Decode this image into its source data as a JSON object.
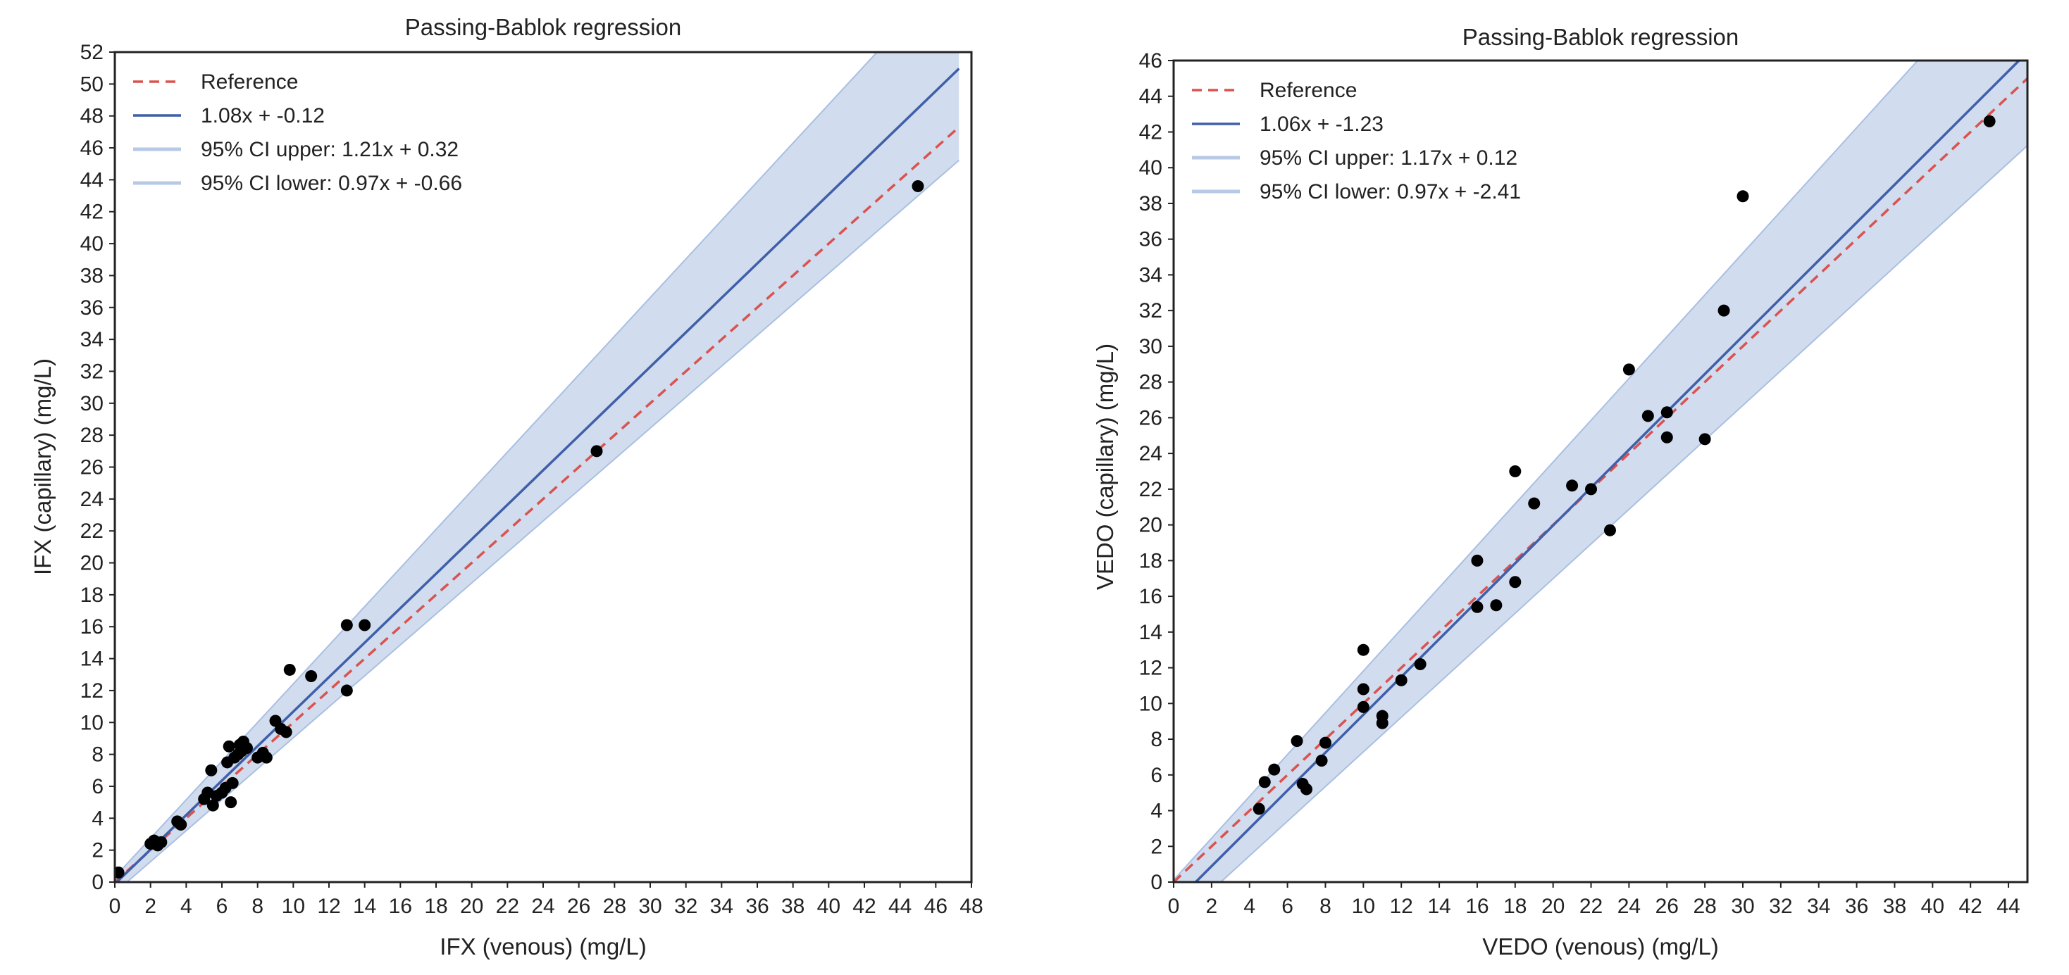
{
  "chart_data": [
    {
      "type": "scatter",
      "title": "Passing-Bablok regression",
      "xlabel": "IFX (venous) (mg/L)",
      "ylabel": "IFX (capillary) (mg/L)",
      "xlim": [
        0,
        48
      ],
      "ylim": [
        0,
        52
      ],
      "x_ticks": [
        0,
        2,
        4,
        6,
        8,
        10,
        12,
        14,
        16,
        18,
        20,
        22,
        24,
        26,
        28,
        30,
        32,
        34,
        36,
        38,
        40,
        42,
        44,
        46,
        48
      ],
      "y_ticks": [
        0,
        2,
        4,
        6,
        8,
        10,
        12,
        14,
        16,
        18,
        20,
        22,
        24,
        26,
        28,
        30,
        32,
        34,
        36,
        38,
        40,
        42,
        44,
        46,
        48,
        50,
        52
      ],
      "line_extent": [
        0,
        47.3
      ],
      "grid": false,
      "legend_position": "top-left",
      "legend": [
        {
          "label": "Reference",
          "style": "dashed",
          "color": "#d9534f"
        },
        {
          "label": "1.08x + -0.12",
          "style": "solid",
          "color": "#3f5fa8"
        },
        {
          "label": "95% CI upper: 1.21x + 0.32",
          "style": "band",
          "color": "#b8c9e6"
        },
        {
          "label": "95% CI lower: 0.97x + -0.66",
          "style": "band",
          "color": "#b8c9e6"
        }
      ],
      "reference": {
        "slope": 1,
        "intercept": 0
      },
      "fit": {
        "slope": 1.08,
        "intercept": -0.12
      },
      "ci_upper": {
        "slope": 1.21,
        "intercept": 0.32
      },
      "ci_lower": {
        "slope": 0.97,
        "intercept": -0.66
      },
      "points": [
        [
          0.2,
          0.6
        ],
        [
          2.0,
          2.4
        ],
        [
          2.2,
          2.6
        ],
        [
          2.4,
          2.3
        ],
        [
          2.6,
          2.5
        ],
        [
          3.5,
          3.8
        ],
        [
          3.7,
          3.6
        ],
        [
          5.0,
          5.2
        ],
        [
          5.2,
          5.6
        ],
        [
          5.4,
          7.0
        ],
        [
          5.5,
          4.8
        ],
        [
          5.7,
          5.4
        ],
        [
          6.0,
          5.6
        ],
        [
          6.2,
          5.9
        ],
        [
          6.3,
          7.5
        ],
        [
          6.4,
          8.5
        ],
        [
          6.5,
          5.0
        ],
        [
          6.6,
          6.2
        ],
        [
          6.7,
          7.8
        ],
        [
          6.9,
          8.0
        ],
        [
          7.0,
          8.6
        ],
        [
          7.1,
          8.2
        ],
        [
          7.2,
          8.8
        ],
        [
          7.4,
          8.4
        ],
        [
          8.0,
          7.8
        ],
        [
          8.3,
          8.1
        ],
        [
          8.5,
          7.8
        ],
        [
          9.0,
          10.1
        ],
        [
          9.3,
          9.6
        ],
        [
          9.6,
          9.4
        ],
        [
          9.8,
          13.3
        ],
        [
          11.0,
          12.9
        ],
        [
          13.0,
          16.1
        ],
        [
          13.0,
          12.0
        ],
        [
          14.0,
          16.1
        ],
        [
          27.0,
          27.0
        ],
        [
          45.0,
          43.6
        ]
      ],
      "colors": {
        "reference": "#d9534f",
        "fit": "#3f5fa8",
        "band": "#c9d6ec",
        "points": "#000000"
      }
    },
    {
      "type": "scatter",
      "title": "Passing-Bablok regression",
      "xlabel": "VEDO (venous) (mg/L)",
      "ylabel": "VEDO (capillary) (mg/L)",
      "xlim": [
        0,
        45
      ],
      "ylim": [
        0,
        46
      ],
      "x_ticks": [
        0,
        2,
        4,
        6,
        8,
        10,
        12,
        14,
        16,
        18,
        20,
        22,
        24,
        26,
        28,
        30,
        32,
        34,
        36,
        38,
        40,
        42,
        44
      ],
      "y_ticks": [
        0,
        2,
        4,
        6,
        8,
        10,
        12,
        14,
        16,
        18,
        20,
        22,
        24,
        26,
        28,
        30,
        32,
        34,
        36,
        38,
        40,
        42,
        44,
        46
      ],
      "line_extent": [
        0,
        45
      ],
      "grid": false,
      "legend_position": "top-left",
      "legend": [
        {
          "label": "Reference",
          "style": "dashed",
          "color": "#d9534f"
        },
        {
          "label": "1.06x + -1.23",
          "style": "solid",
          "color": "#3f5fa8"
        },
        {
          "label": "95% CI upper: 1.17x + 0.12",
          "style": "band",
          "color": "#b8c9e6"
        },
        {
          "label": "95% CI lower: 0.97x + -2.41",
          "style": "band",
          "color": "#b8c9e6"
        }
      ],
      "reference": {
        "slope": 1,
        "intercept": 0
      },
      "fit": {
        "slope": 1.06,
        "intercept": -1.23
      },
      "ci_upper": {
        "slope": 1.17,
        "intercept": 0.12
      },
      "ci_lower": {
        "slope": 0.97,
        "intercept": -2.41
      },
      "points": [
        [
          4.5,
          4.1
        ],
        [
          4.8,
          5.6
        ],
        [
          5.3,
          6.3
        ],
        [
          6.5,
          7.9
        ],
        [
          6.8,
          5.5
        ],
        [
          7.0,
          5.2
        ],
        [
          7.8,
          6.8
        ],
        [
          8.0,
          7.8
        ],
        [
          10.0,
          13.0
        ],
        [
          10.0,
          10.8
        ],
        [
          10.0,
          9.8
        ],
        [
          11.0,
          9.3
        ],
        [
          11.0,
          8.9
        ],
        [
          12.0,
          11.3
        ],
        [
          13.0,
          12.2
        ],
        [
          16.0,
          18.0
        ],
        [
          16.0,
          15.4
        ],
        [
          17.0,
          15.5
        ],
        [
          18.0,
          16.8
        ],
        [
          18.0,
          23.0
        ],
        [
          19.0,
          21.2
        ],
        [
          21.0,
          22.2
        ],
        [
          22.0,
          22.0
        ],
        [
          23.0,
          19.7
        ],
        [
          24.0,
          28.7
        ],
        [
          25.0,
          26.1
        ],
        [
          26.0,
          26.3
        ],
        [
          26.0,
          24.9
        ],
        [
          28.0,
          24.8
        ],
        [
          29.0,
          32.0
        ],
        [
          30.0,
          38.4
        ],
        [
          43.0,
          42.6
        ]
      ],
      "colors": {
        "reference": "#d9534f",
        "fit": "#3f5fa8",
        "band": "#c9d6ec",
        "points": "#000000"
      }
    }
  ]
}
